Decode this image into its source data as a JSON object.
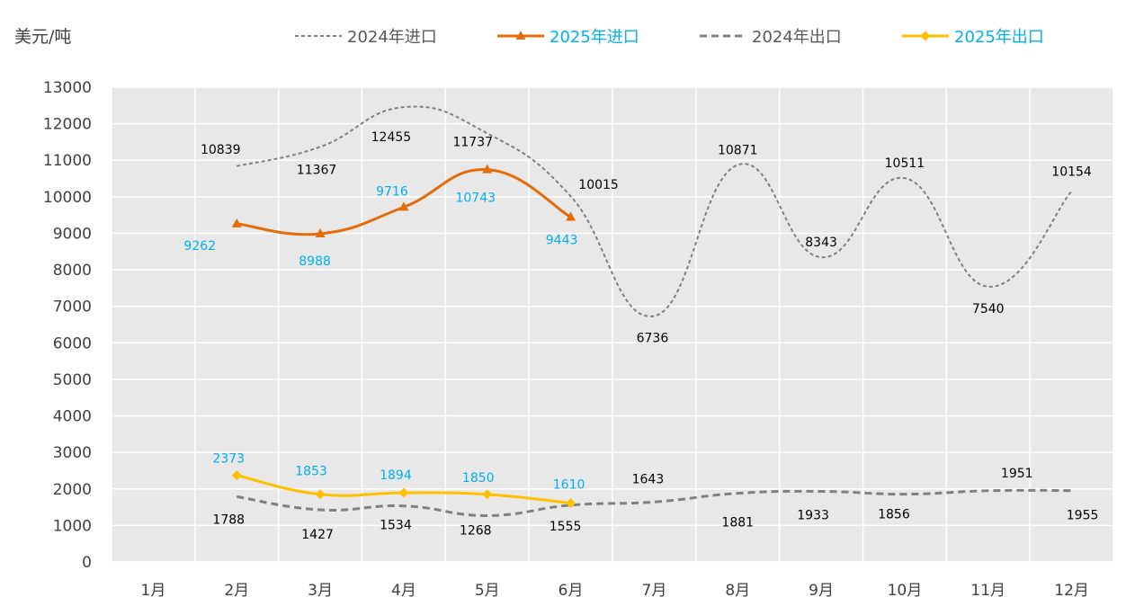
{
  "chart_data": {
    "type": "line",
    "unit_label": "美元/吨",
    "categories": [
      "1月",
      "2月",
      "3月",
      "4月",
      "5月",
      "6月",
      "7月",
      "8月",
      "9月",
      "10月",
      "11月",
      "12月"
    ],
    "ylim": [
      0,
      13000
    ],
    "y_ticks": [
      0,
      1000,
      2000,
      3000,
      4000,
      5000,
      6000,
      7000,
      8000,
      9000,
      10000,
      11000,
      12000,
      13000
    ],
    "grid": true,
    "legend_position": "top",
    "series": [
      {
        "name": "2024年进口",
        "values": [
          null,
          10839,
          11367,
          12455,
          11737,
          10015,
          6736,
          10871,
          8343,
          10511,
          7540,
          10154
        ],
        "color": "#808080",
        "style": "dotted",
        "marker": "none",
        "label_color": "#000000"
      },
      {
        "name": "2025年进口",
        "values": [
          null,
          9262,
          8988,
          9716,
          10743,
          9443,
          null,
          null,
          null,
          null,
          null,
          null
        ],
        "color": "#E46C0A",
        "style": "solid",
        "marker": "triangle",
        "label_color": "#00B0F0"
      },
      {
        "name": "2024年出口",
        "values": [
          null,
          1788,
          1427,
          1534,
          1268,
          1555,
          1643,
          1881,
          1933,
          1856,
          1951,
          1955
        ],
        "color": "#808080",
        "style": "dashed",
        "marker": "none",
        "label_color": "#000000"
      },
      {
        "name": "2025年出口",
        "values": [
          null,
          2373,
          1853,
          1894,
          1850,
          1610,
          null,
          null,
          null,
          null,
          null,
          null
        ],
        "color": "#FFC000",
        "style": "solid",
        "marker": "diamond",
        "label_color": "#00B0F0"
      }
    ]
  }
}
